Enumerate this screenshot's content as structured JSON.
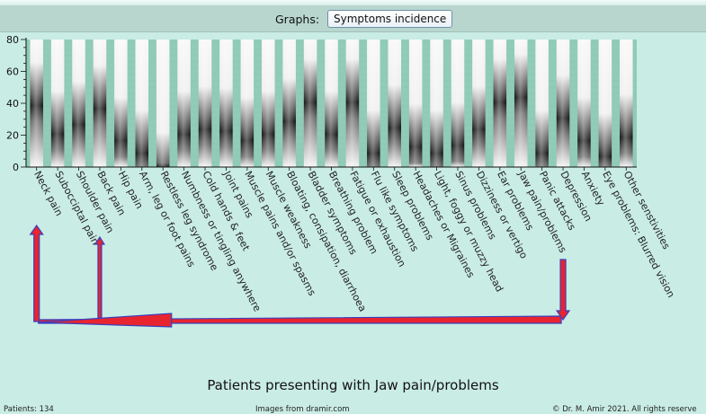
{
  "toolbar": {
    "graphs_label": "Graphs:",
    "graph_button_label": "Symptoms incidence"
  },
  "chart_data": {
    "type": "bar",
    "title": "Patients presenting with Jaw pain/problems",
    "xlabel": "",
    "ylabel": "",
    "ylim": [
      0,
      80
    ],
    "yticks": [
      0,
      20,
      40,
      60,
      80
    ],
    "grid": false,
    "categories": [
      "Neck pain",
      "Subocciptal pain",
      "Shoulder pain",
      "Back pain",
      "Hip pain",
      "Arm, leg or foot pains",
      "Restless leg syndrome",
      "Numbness or tingling anywhere",
      "Cold hands & feet",
      "Joint pains",
      "Muscle pains and/or spasms",
      "Muscle weakness",
      "Bloating, consipation, diarrhoea",
      "Bladder symptoms",
      "Breathing problem",
      "Fatigue or exhaustion",
      "Flu like symptoms",
      "Sleep problems",
      "Headaches or Migraines",
      "Light, foggy or muzzy head",
      "Sinus problems",
      "Dizziness or vertigo",
      "Ear problems",
      "Jaw pain/problems",
      "Panic attacks",
      "Depression",
      "Anxiety",
      "Eye problems: Blurred vision",
      "Other senstivities"
    ],
    "values": [
      60,
      42,
      48,
      58,
      38,
      30,
      16,
      42,
      45,
      44,
      38,
      42,
      50,
      62,
      42,
      62,
      30,
      46,
      34,
      30,
      35,
      45,
      62,
      65,
      30,
      52,
      38,
      28,
      40
    ],
    "highlight_category": "Jaw pain/problems",
    "annotation_arrows": [
      "Neck pain",
      "Back pain",
      "Depression"
    ],
    "colors": {
      "plot_bg": "#90ccb8",
      "bar_dark": "#101010",
      "bar_light": "#ffffff",
      "arrow_fill": "#e8242e",
      "arrow_stroke": "#3a40c0"
    }
  },
  "footer": {
    "patients": "Patients: 134",
    "images_credit": "Images from dramir.com",
    "copyright": "© Dr. M. Amir 2021. All rights reserve"
  }
}
